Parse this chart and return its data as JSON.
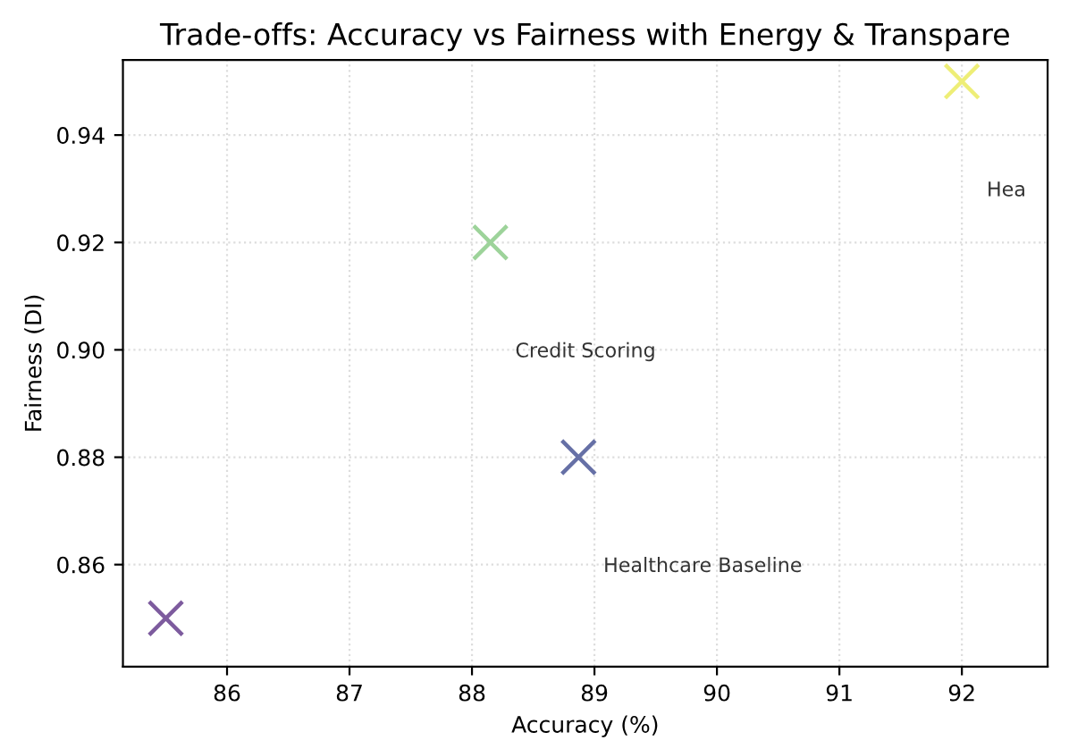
{
  "chart_data": {
    "type": "scatter",
    "title": "Trade-offs: Accuracy vs Fairness with Energy & Transpare",
    "xlabel": "Accuracy (%)",
    "ylabel": "Fairness (DI)",
    "series": [
      {
        "x": [
          85.5
        ],
        "values": [
          0.85
        ],
        "color": "#7d5b9e"
      },
      {
        "x": [
          88.15
        ],
        "values": [
          0.92
        ],
        "color": "#9dd39a"
      },
      {
        "x": [
          88.87
        ],
        "values": [
          0.88
        ],
        "color": "#6670a6"
      },
      {
        "x": [
          92.0
        ],
        "values": [
          0.95
        ],
        "color": "#eeee77"
      }
    ],
    "annotations": [
      "Credit Scoring",
      "Healthcare Baseline",
      "Hea"
    ],
    "xlim": [
      85.15,
      92.7
    ],
    "ylim": [
      0.841,
      0.954
    ],
    "xticks": [
      86,
      87,
      88,
      89,
      90,
      91,
      92
    ],
    "yticks": [
      {
        "value": 0.86,
        "label": "0.86"
      },
      {
        "value": 0.88,
        "label": "0.88"
      },
      {
        "value": 0.9,
        "label": "0.90"
      },
      {
        "value": 0.92,
        "label": "0.92"
      },
      {
        "value": 0.94,
        "label": "0.94"
      }
    ],
    "grid": true,
    "marker": "cross"
  }
}
